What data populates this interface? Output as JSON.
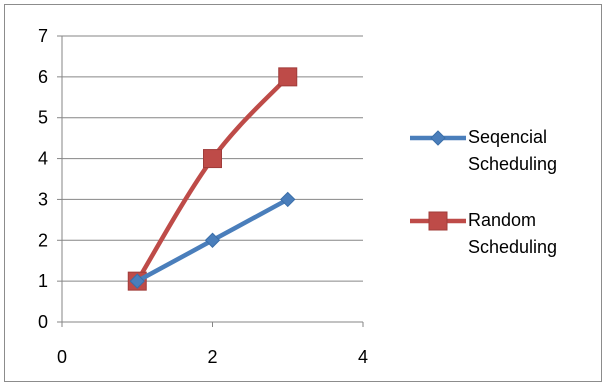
{
  "chart_data": {
    "type": "line",
    "xlim": [
      0,
      4
    ],
    "ylim": [
      0,
      7
    ],
    "xticks": [
      0,
      2,
      4
    ],
    "yticks": [
      0,
      1,
      2,
      3,
      4,
      5,
      6,
      7
    ],
    "grid": "horizontal",
    "legend_position": "right",
    "series": [
      {
        "name": "Seqencial Scheduling",
        "legend_lines": [
          "Seqencial",
          "Scheduling"
        ],
        "color": "#4a7ebb",
        "marker": "diamond",
        "x": [
          1,
          2,
          3
        ],
        "y": [
          1,
          2,
          3
        ]
      },
      {
        "name": "Random Scheduling",
        "legend_lines": [
          "Random",
          "Scheduling"
        ],
        "color": "#be4b48",
        "marker": "square",
        "x": [
          1,
          2,
          3
        ],
        "y": [
          1,
          4,
          6
        ]
      }
    ]
  }
}
